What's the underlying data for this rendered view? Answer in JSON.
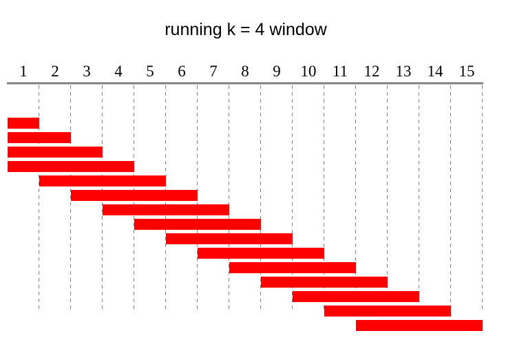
{
  "title": "running k = 4 window",
  "window_size": 4,
  "positions": [
    "1",
    "2",
    "3",
    "4",
    "5",
    "6",
    "7",
    "8",
    "9",
    "10",
    "11",
    "12",
    "13",
    "14",
    "15"
  ],
  "windows": [
    {
      "start": 1,
      "end": 1
    },
    {
      "start": 1,
      "end": 2
    },
    {
      "start": 1,
      "end": 3
    },
    {
      "start": 1,
      "end": 4
    },
    {
      "start": 2,
      "end": 5
    },
    {
      "start": 3,
      "end": 6
    },
    {
      "start": 4,
      "end": 7
    },
    {
      "start": 5,
      "end": 8
    },
    {
      "start": 6,
      "end": 9
    },
    {
      "start": 7,
      "end": 10
    },
    {
      "start": 8,
      "end": 11
    },
    {
      "start": 9,
      "end": 12
    },
    {
      "start": 10,
      "end": 13
    },
    {
      "start": 11,
      "end": 14
    },
    {
      "start": 12,
      "end": 15
    }
  ],
  "colors": {
    "bar": "#ff0000",
    "axis": "#808080",
    "dash": "#808080",
    "text": "#000000"
  }
}
